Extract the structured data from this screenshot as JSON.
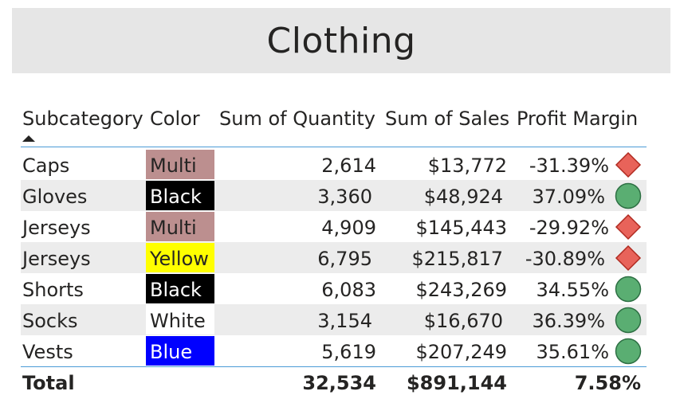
{
  "title": "Clothing",
  "columns": {
    "subcategory": "Subcategory",
    "color": "Color",
    "quantity": "Sum of Quantity",
    "sales": "Sum of Sales",
    "margin": "Profit Margin"
  },
  "rows": [
    {
      "subcategory": "Caps",
      "color": "Multi",
      "swatch": "#bc8f8f",
      "text_color": "#252423",
      "quantity": "2,614",
      "sales": "$13,772",
      "margin": "-31.39%",
      "kpi": "red-diamond"
    },
    {
      "subcategory": "Gloves",
      "color": "Black",
      "swatch": "#000000",
      "text_color": "#ffffff",
      "quantity": "3,360",
      "sales": "$48,924",
      "margin": "37.09%",
      "kpi": "green-circle"
    },
    {
      "subcategory": "Jerseys",
      "color": "Multi",
      "swatch": "#bc8f8f",
      "text_color": "#252423",
      "quantity": "4,909",
      "sales": "$145,443",
      "margin": "-29.92%",
      "kpi": "red-diamond"
    },
    {
      "subcategory": "Jerseys",
      "color": "Yellow",
      "swatch": "#ffff00",
      "text_color": "#252423",
      "quantity": "6,795",
      "sales": "$215,817",
      "margin": "-30.89%",
      "kpi": "red-diamond"
    },
    {
      "subcategory": "Shorts",
      "color": "Black",
      "swatch": "#000000",
      "text_color": "#ffffff",
      "quantity": "6,083",
      "sales": "$243,269",
      "margin": "34.55%",
      "kpi": "green-circle"
    },
    {
      "subcategory": "Socks",
      "color": "White",
      "swatch": "#ffffff",
      "text_color": "#252423",
      "quantity": "3,154",
      "sales": "$16,670",
      "margin": "36.39%",
      "kpi": "green-circle"
    },
    {
      "subcategory": "Vests",
      "color": "Blue",
      "swatch": "#0000ff",
      "text_color": "#ffffff",
      "quantity": "5,619",
      "sales": "$207,249",
      "margin": "35.61%",
      "kpi": "green-circle"
    }
  ],
  "total": {
    "label": "Total",
    "quantity": "32,534",
    "sales": "$891,144",
    "margin": "7.58%"
  },
  "colors": {
    "kpi_red": "#e8635a",
    "kpi_red_border": "#b02a20",
    "kpi_green": "#5aae72",
    "kpi_green_border": "#2e7044",
    "rule": "#4a9bd6",
    "title_bg": "#e6e6e6"
  }
}
